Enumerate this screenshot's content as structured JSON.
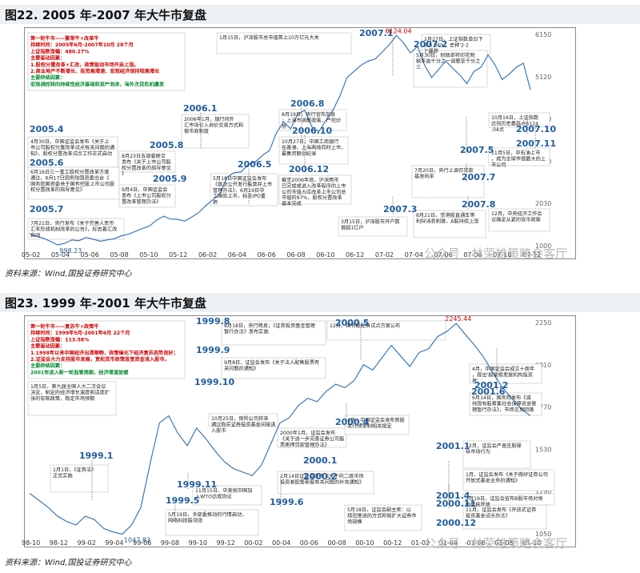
{
  "figures": [
    {
      "title": "图22. 2005 年-2007 年大牛市复盘",
      "source": "资料来源：Wind,国投证券研究中心",
      "summary": {
        "head": "第一轮牛市——繁荣牛+改革牛",
        "line1": "持续时间：2005年6月-2007年10月  28个月",
        "line2": "上证指数涨幅：480.27%",
        "line3": "主要驱动因素：",
        "line4": "1.股权分置改革+汇改，政策驱动市场开启上涨。",
        "line5": "2.商业地产不断增长、投资高增速、宏观经济保持较高增长",
        "line6": "主要终结因素：",
        "line7": "宏观调控转向持续性经济基础和资产泡沫，海外次贷危机爆发"
      },
      "chart_data": {
        "type": "line",
        "series_name": "上证指数",
        "x_ticks": [
          "05-02",
          "05-04",
          "05-06",
          "05-08",
          "05-10",
          "05-12",
          "06-02",
          "06-04",
          "06-06",
          "06-08",
          "06-10",
          "06-12",
          "07-02",
          "07-04",
          "07-06",
          "07-08",
          "07-10",
          "07-12"
        ],
        "y_ticks": [
          "6150",
          "5120",
          "4090",
          "3060",
          "2030",
          "1000"
        ],
        "ylim": [
          1000,
          6150
        ],
        "low": "998.23",
        "high": "6124.04",
        "points": [
          [
            0,
            1290
          ],
          [
            1,
            1230
          ],
          [
            2,
            1180
          ],
          [
            3,
            1100
          ],
          [
            4,
            1020
          ],
          [
            5,
            1060
          ],
          [
            6,
            1140
          ],
          [
            7,
            1120
          ],
          [
            8,
            1200
          ],
          [
            9,
            1160
          ],
          [
            10,
            1110
          ],
          [
            11,
            1140
          ],
          [
            12,
            1170
          ],
          [
            13,
            1240
          ],
          [
            14,
            1280
          ],
          [
            15,
            1350
          ],
          [
            16,
            1420
          ],
          [
            17,
            1480
          ],
          [
            18,
            1620
          ],
          [
            19,
            1720
          ],
          [
            20,
            1650
          ],
          [
            21,
            1640
          ],
          [
            22,
            1600
          ],
          [
            23,
            1700
          ],
          [
            24,
            1810
          ],
          [
            25,
            1980
          ],
          [
            26,
            2120
          ],
          [
            27,
            2270
          ],
          [
            28,
            2670
          ],
          [
            29,
            2780
          ],
          [
            30,
            2800
          ],
          [
            31,
            2980
          ],
          [
            32,
            3040
          ],
          [
            33,
            3200
          ],
          [
            34,
            3320
          ],
          [
            35,
            3750
          ],
          [
            36,
            4020
          ],
          [
            37,
            3850
          ],
          [
            38,
            4200
          ],
          [
            39,
            4300
          ],
          [
            40,
            3900
          ],
          [
            41,
            3780
          ],
          [
            42,
            4050
          ],
          [
            43,
            4300
          ],
          [
            44,
            4650
          ],
          [
            45,
            5100
          ],
          [
            46,
            5250
          ],
          [
            47,
            5400
          ],
          [
            48,
            5500
          ],
          [
            49,
            5550
          ],
          [
            50,
            5720
          ],
          [
            51,
            5900
          ],
          [
            52,
            6124
          ],
          [
            53,
            5950
          ],
          [
            54,
            5700
          ],
          [
            55,
            5860
          ],
          [
            56,
            5400
          ],
          [
            57,
            5100
          ],
          [
            58,
            5300
          ],
          [
            59,
            5500
          ],
          [
            60,
            5320
          ],
          [
            61,
            5160
          ],
          [
            62,
            4950
          ],
          [
            63,
            5250
          ],
          [
            64,
            5350
          ],
          [
            65,
            5650
          ],
          [
            66,
            5400
          ],
          [
            67,
            5050
          ],
          [
            68,
            5180
          ],
          [
            69,
            5350
          ],
          [
            70,
            5450
          ],
          [
            71,
            4800
          ]
        ]
      },
      "labels": [
        "2005.4",
        "2005.6",
        "2005.8",
        "2005.9",
        "2005.7",
        "2006.1",
        "2006.5",
        "2006.8",
        "2006.10",
        "2006.12",
        "2007.1",
        "2007.2",
        "2007.3",
        "2007.5",
        "2007.7",
        "2007.8",
        "2007.10",
        "2007.11"
      ],
      "notes": {
        "n1": "4月30日，中国证监会发布《关于上市公司股权分置改革试点有关问题的通知》，股权分置改革试点工作正式启动。",
        "n2": "6月16日三一重工股权分置改革方案通过。6月17日国务院国资委出台《国务院国资委关于国有控股上市公司股权分置改革的指导意见》",
        "n3": "8月23日五部委联合发布《关于上市公司股权分置改革的指导意见》",
        "n4": "9月4日，中国证监会发布《上市公司股权分置改革管理办法》",
        "n5": "7月21日，央行发布《关于完善人民币汇率形成机制改革的公告》，标志着汇改启动",
        "n6": "2006年1月，银行间外汇市场引入询价交易方式和做市商制度",
        "n7": "5月18日中国证监会发布《首次公开发行股票并上市管理办法》，6月19日中工国际上市，标志IPO重启",
        "n8": "8月19日，央行宣布加息；上海市调整政策，严控炒房",
        "n9": "10月27日，中国工商银行在香港、上海两地同时上市，最集资额创纪录",
        "n10": "截至2006年底，沪深两市已完成或进入改革程序的上市公司市值占应改革上市公司总市值的97%，股权分置改革基本完成",
        "n11": "1月15日，沪深股市总市值首上10万亿元大关",
        "n12": "2月27日，上证指数单日下跌8.84%，史称'2·27'暴跌",
        "n13": "3月15日，沪深股市开户数首超1亿户",
        "n14": "5月30日，财政部将印花税税率由千分之一调整至千分之三",
        "n15": "7月20日，央行上调存贷款基准利率",
        "n16": "8月21日，受港股直通车等利好消息刺激，A股持续上涨",
        "n17": "10月16日，上证指数达到历史最高点6124.04点",
        "n18": "11月5日，中石油上市，成为全球市值最大的上市公司",
        "n19": "12月，中央经济工作会议确定从紧的货币政策"
      }
    },
    {
      "title": "图23. 1999 年-2001 年大牛市复盘",
      "source": "资料来源：Wind,国投证券研究中心",
      "summary": {
        "head": "第一轮牛市——复苏牛+政策牛",
        "line1": "持续时间：1999年5月-2001年6月  22个月",
        "line2": "上证指数涨幅：113.58%",
        "line3": "主要驱动因素：",
        "line4": "1.1998年以来中国经济出清顺畅，政策催化下经济复苏态势良好；",
        "line5": "2.证监会大力支持股市发展，宽松货币政策放宽资金流入股市。",
        "line6": "主要终结因素：",
        "line7": "2001年进入新一轮监管周期，经济增速放缓"
      },
      "chart_data": {
        "type": "line",
        "series_name": "上证指数",
        "x_ticks": [
          "98-10",
          "98-12",
          "99-02",
          "99-04",
          "99-06",
          "99-08",
          "99-10",
          "99-12",
          "00-02",
          "00-04",
          "00-06",
          "00-08",
          "00-10",
          "00-12",
          "01-02",
          "01-04",
          "01-06",
          "01-08",
          "01-10"
        ],
        "y_ticks": [
          "2250",
          "2010",
          "1770",
          "1530",
          "1290",
          "1050"
        ],
        "ylim": [
          1050,
          2250
        ],
        "low": "1047.83",
        "high": "2245.44",
        "points": [
          [
            0,
            1280
          ],
          [
            1,
            1240
          ],
          [
            2,
            1200
          ],
          [
            3,
            1150
          ],
          [
            4,
            1120
          ],
          [
            5,
            1100
          ],
          [
            6,
            1150
          ],
          [
            7,
            1130
          ],
          [
            8,
            1080
          ],
          [
            9,
            1060
          ],
          [
            10,
            1048
          ],
          [
            11,
            1100
          ],
          [
            12,
            1200
          ],
          [
            13,
            1450
          ],
          [
            14,
            1680
          ],
          [
            15,
            1720
          ],
          [
            16,
            1620
          ],
          [
            17,
            1550
          ],
          [
            18,
            1650
          ],
          [
            19,
            1590
          ],
          [
            20,
            1520
          ],
          [
            21,
            1460
          ],
          [
            22,
            1420
          ],
          [
            23,
            1400
          ],
          [
            24,
            1380
          ],
          [
            25,
            1440
          ],
          [
            26,
            1560
          ],
          [
            27,
            1680
          ],
          [
            28,
            1710
          ],
          [
            29,
            1780
          ],
          [
            30,
            1820
          ],
          [
            31,
            1800
          ],
          [
            32,
            1860
          ],
          [
            33,
            1900
          ],
          [
            34,
            1880
          ],
          [
            35,
            1920
          ],
          [
            36,
            2010
          ],
          [
            37,
            1980
          ],
          [
            38,
            2050
          ],
          [
            39,
            2120
          ],
          [
            40,
            2060
          ],
          [
            41,
            2000
          ],
          [
            42,
            2080
          ],
          [
            43,
            2100
          ],
          [
            44,
            2170
          ],
          [
            45,
            2200
          ],
          [
            46,
            2245
          ],
          [
            47,
            2180
          ],
          [
            48,
            2120
          ],
          [
            49,
            2050
          ],
          [
            50,
            1960
          ],
          [
            51,
            1880
          ],
          [
            52,
            1820
          ],
          [
            53,
            1760
          ],
          [
            54,
            1720
          ]
        ]
      },
      "labels": [
        "1999.1",
        "1999.8",
        "1999.9",
        "1999.10",
        "1999.11",
        "1999.5",
        "1999.6",
        "2000.1",
        "2000.2",
        "2000.4",
        "2000.5",
        "2000.11",
        "2000.12",
        "2001.1",
        "2001.2",
        "2001.4",
        "2001.6"
      ],
      "notes": {
        "m1": "1月5日，第九届全国人大二次会议决定，制定的经济增长速度和适度扩张的宏观政策，稳定市场预期",
        "m2": "1月1日，《证券法》正式实施",
        "m3": "5月19日，多部委推动的行情启动，网络科技股领涨",
        "m4": "8月18日，央行降息；《证券投资基金管理暂行办法》发布实施",
        "m5": "9月8日，证监会发布《关于法人配售股票有关问题的通知》",
        "m6": "10月25日，保险公司获准通过购买证券投资基金间接进入股市",
        "m7": "11月15日，中美就中国加入WTO达成协议",
        "m8": "12月，国有股配售试点方案公布",
        "m9": "2000年1月，证监会发布《关于进一步完善证券公司股票质押贷款管理办法》",
        "m10": "2月14日证监会发布《关于向二级市场投资者配售新股有关问题的补充通知》",
        "m11": "4月，中国证监会发布新股发行核准制相关规定",
        "m12": "5月18日，证监会副主席：以规范推进的方式积极扩大证券市场规模",
        "m13": "11月，证监会发布《开放式证券投资基金试点办法》",
        "m14": "12月，证监会严查庄股操纵市场行为",
        "m15": "1月，证监会发布《关于做好证券公司开放式基金业务的通知》",
        "m16": "2月19日，证监会宣布B股市场对境内居民开放",
        "m17": "4月，中国证监会成立十周年，提出'超常规发展机构投资者'",
        "m18": "6月14日，国务院发布《减持国有股筹集社会保障资金管理暂行办法》，市场见顶回落"
      }
    }
  ],
  "watermark": "公众号 · 林荣雄策略会客厅"
}
